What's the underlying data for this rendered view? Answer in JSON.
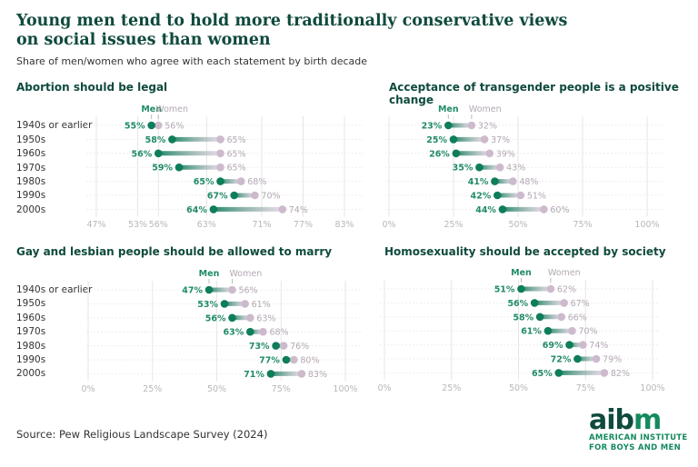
{
  "title": "Young men tend to hold more traditionally conservative views on social issues than women",
  "subtitle": "Share of men/women who agree with each statement by birth decade",
  "source": "Source: Pew Religious Landscape Survey (2024)",
  "logo": {
    "word_a": "aib",
    "word_b": "m",
    "org_line1": "AMERICAN INSTITUTE",
    "org_line2": "FOR BOYS AND MEN"
  },
  "colors": {
    "men": "#0e7d5a",
    "women": "#cdbacd",
    "men_label": "#218b66",
    "women_label": "#b3a8b3",
    "title": "#0f4a3d"
  },
  "legend": {
    "men": "Men",
    "women": "Women"
  },
  "categories": [
    "1940s or earlier",
    "1950s",
    "1960s",
    "1970s",
    "1980s",
    "1990s",
    "2000s"
  ],
  "chart_data": [
    {
      "type": "dumbbell",
      "title": "Abortion should be legal",
      "categories": [
        "1940s or earlier",
        "1950s",
        "1960s",
        "1970s",
        "1980s",
        "1990s",
        "2000s"
      ],
      "series": [
        {
          "name": "Men",
          "values": [
            55,
            58,
            56,
            59,
            65,
            67,
            64
          ]
        },
        {
          "name": "Women",
          "values": [
            56,
            65,
            65,
            65,
            68,
            70,
            74
          ]
        }
      ],
      "xticks": [
        47,
        53,
        56,
        63,
        71,
        77,
        83
      ],
      "xlim": [
        45,
        85
      ],
      "unit": "%"
    },
    {
      "type": "dumbbell",
      "title": "Acceptance of transgender people is a positive change",
      "categories": [
        "1940s or earlier",
        "1950s",
        "1960s",
        "1970s",
        "1980s",
        "1990s",
        "2000s"
      ],
      "series": [
        {
          "name": "Men",
          "values": [
            23,
            25,
            26,
            35,
            41,
            42,
            44
          ]
        },
        {
          "name": "Women",
          "values": [
            32,
            37,
            39,
            43,
            48,
            51,
            60
          ]
        }
      ],
      "xticks": [
        0,
        25,
        50,
        75,
        100
      ],
      "xlim": [
        0,
        100
      ],
      "unit": "%"
    },
    {
      "type": "dumbbell",
      "title": "Gay and lesbian people should be allowed to marry",
      "categories": [
        "1940s or earlier",
        "1950s",
        "1960s",
        "1970s",
        "1980s",
        "1990s",
        "2000s"
      ],
      "series": [
        {
          "name": "Men",
          "values": [
            47,
            53,
            56,
            63,
            73,
            77,
            71
          ]
        },
        {
          "name": "Women",
          "values": [
            56,
            61,
            63,
            68,
            76,
            80,
            83
          ]
        }
      ],
      "xticks": [
        0,
        25,
        50,
        75,
        100
      ],
      "xlim": [
        0,
        100
      ],
      "unit": "%"
    },
    {
      "type": "dumbbell",
      "title": "Homosexuality should be accepted by society",
      "categories": [
        "1940s or earlier",
        "1950s",
        "1960s",
        "1970s",
        "1980s",
        "1990s",
        "2000s"
      ],
      "series": [
        {
          "name": "Men",
          "values": [
            51,
            56,
            58,
            61,
            69,
            72,
            65
          ]
        },
        {
          "name": "Women",
          "values": [
            62,
            67,
            66,
            70,
            74,
            79,
            82
          ]
        }
      ],
      "xticks": [
        0,
        25,
        50,
        75,
        100
      ],
      "xlim": [
        0,
        100
      ],
      "unit": "%"
    }
  ]
}
